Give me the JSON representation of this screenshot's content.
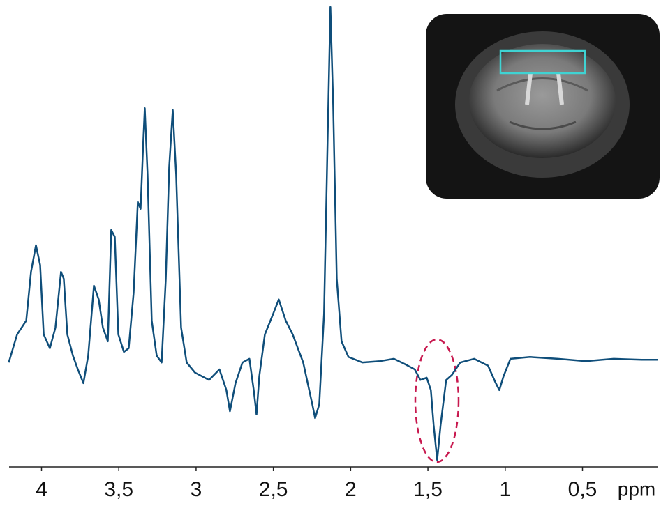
{
  "chart_data": {
    "type": "line",
    "x_label": "ppm",
    "xlim": [
      4.21,
      0.01
    ],
    "ylim": [
      0,
      100
    ],
    "xticks": [
      4,
      {
        "value": 3.5,
        "label": "3,5"
      },
      3,
      {
        "value": 2.5,
        "label": "2,5"
      },
      2,
      {
        "value": 1.5,
        "label": "1,5"
      },
      1,
      {
        "value": 0.5,
        "label": "0,5"
      }
    ],
    "x": [
      4.212,
      4.158,
      4.099,
      4.068,
      4.036,
      4.009,
      3.986,
      3.946,
      3.91,
      3.874,
      3.856,
      3.833,
      3.797,
      3.765,
      3.729,
      3.698,
      3.661,
      3.63,
      3.603,
      3.571,
      3.549,
      3.526,
      3.503,
      3.467,
      3.436,
      3.404,
      3.377,
      3.359,
      3.341,
      3.332,
      3.314,
      3.287,
      3.255,
      3.223,
      3.196,
      3.174,
      3.151,
      3.129,
      3.097,
      3.061,
      3.007,
      2.916,
      2.849,
      2.804,
      2.781,
      2.745,
      2.7,
      2.655,
      2.627,
      2.609,
      2.591,
      2.555,
      2.501,
      2.465,
      2.42,
      2.375,
      2.307,
      2.248,
      2.23,
      2.203,
      2.172,
      2.149,
      2.131,
      2.113,
      2.09,
      2.059,
      2.014,
      1.923,
      1.81,
      1.72,
      1.652,
      1.585,
      1.549,
      1.508,
      1.481,
      1.463,
      1.44,
      1.418,
      1.382,
      1.345,
      1.291,
      1.201,
      1.111,
      1.065,
      1.038,
      1.011,
      0.966,
      0.84,
      0.659,
      0.479,
      0.298,
      0.117,
      0.013
    ],
    "series": [
      {
        "color": "#0f4e7a",
        "values": [
          22.7,
          28.8,
          31.8,
          42.4,
          48.2,
          43.9,
          28.8,
          25.8,
          30.3,
          42.4,
          40.9,
          28.8,
          24.2,
          21.2,
          18.2,
          24.2,
          39.4,
          36.4,
          30.3,
          27.3,
          51.5,
          50.0,
          28.8,
          25.0,
          25.8,
          37.9,
          57.6,
          56.1,
          71.2,
          78.0,
          63.6,
          31.8,
          24.2,
          22.7,
          40.9,
          65.2,
          77.6,
          63.6,
          30.3,
          22.7,
          20.5,
          18.9,
          21.2,
          16.7,
          12.1,
          18.2,
          22.7,
          23.5,
          16.7,
          11.4,
          19.7,
          28.8,
          33.3,
          36.4,
          31.8,
          28.8,
          22.7,
          13.6,
          10.6,
          13.6,
          33.3,
          71.2,
          100,
          78.8,
          40.9,
          27.3,
          23.9,
          22.7,
          23.0,
          23.5,
          22.4,
          21.2,
          18.9,
          19.4,
          16.7,
          9.1,
          1.5,
          9.1,
          18.9,
          20.0,
          22.7,
          23.5,
          22.0,
          18.5,
          16.7,
          19.7,
          23.5,
          23.9,
          23.5,
          23.0,
          23.5,
          23.3,
          23.3
        ]
      }
    ]
  }
}
